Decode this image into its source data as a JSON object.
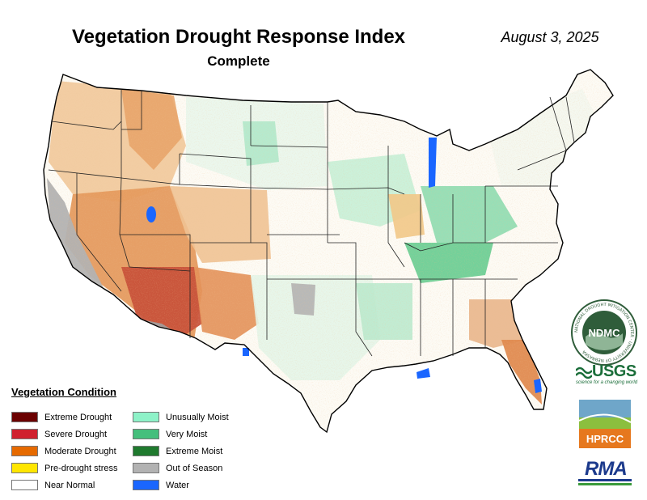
{
  "header": {
    "title": "Vegetation Drought Response Index",
    "subtitle": "Complete",
    "date": "August 3, 2025"
  },
  "legend": {
    "title": "Vegetation Condition",
    "left": [
      {
        "label": "Extreme Drought",
        "color": "#6b0000"
      },
      {
        "label": "Severe Drought",
        "color": "#d0202e"
      },
      {
        "label": "Moderate Drought",
        "color": "#e66a00"
      },
      {
        "label": "Pre-drought stress",
        "color": "#ffe600"
      },
      {
        "label": "Near Normal",
        "color": "#ffffff"
      }
    ],
    "right": [
      {
        "label": "Unusually Moist",
        "color": "#8ef2c8"
      },
      {
        "label": "Very Moist",
        "color": "#45bf7c"
      },
      {
        "label": "Extreme Moist",
        "color": "#1f7a2e"
      },
      {
        "label": "Out of Season",
        "color": "#b2b2b2"
      },
      {
        "label": "Water",
        "color": "#1a66ff"
      }
    ]
  },
  "logos": {
    "ndmc": {
      "text": "NDMC",
      "ring_text": "NATIONAL DROUGHT MITIGATION CENTER · UNIVERSITY OF NEBRASKA"
    },
    "usgs": {
      "text": "USGS",
      "tagline": "science for a changing world"
    },
    "hprcc": {
      "text": "HPRCC"
    },
    "rma": {
      "text": "RMA"
    }
  }
}
